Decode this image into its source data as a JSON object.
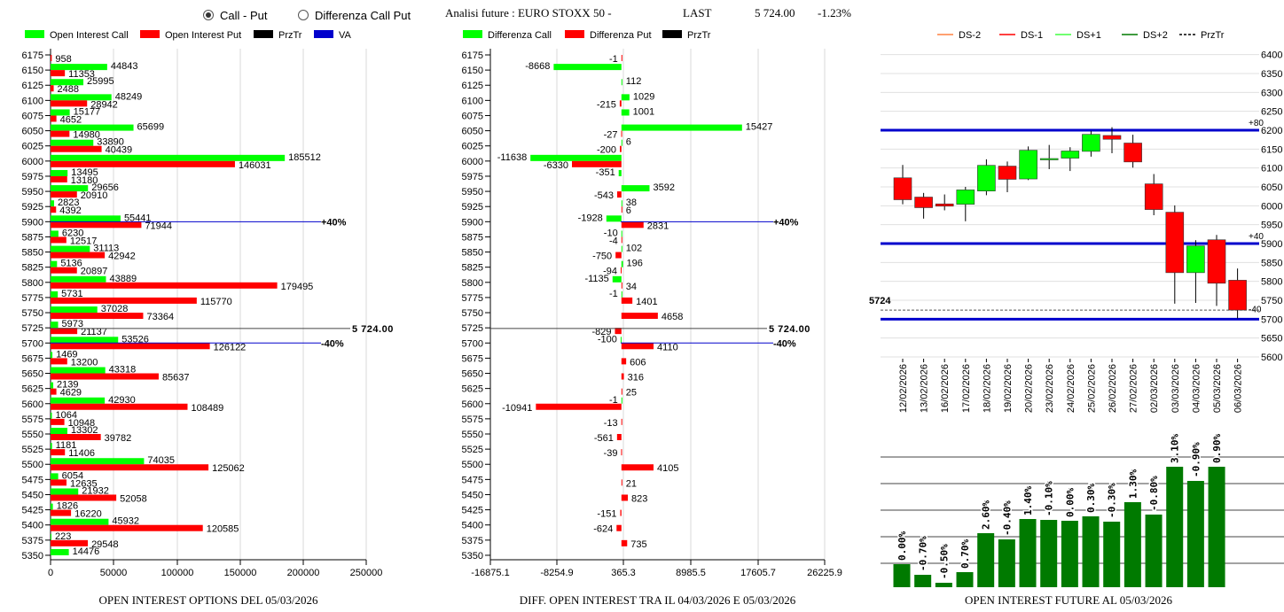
{
  "header": {
    "radio_call_put": "Call - Put",
    "radio_diff": "Differenza Call Put",
    "selected": "Call - Put",
    "title": "Analisi future : EURO STOXX 50 -",
    "last_label": "LAST",
    "last_value": "5 724.00",
    "change": "-1.23%"
  },
  "colors": {
    "call": "#00ff00",
    "put": "#ff0000",
    "prztr": "#000000",
    "va": "#0000cc",
    "future_bar": "#007a00",
    "ds_minus2": "#ff8040",
    "ds_minus1": "#ff0000",
    "ds_plus1": "#40ff40",
    "ds_plus2": "#007a00"
  },
  "chart_data": [
    {
      "type": "bar",
      "orientation": "horizontal",
      "title": "OPEN INTEREST OPTIONS DEL 05/03/2026",
      "legend": [
        "Open Interest Call",
        "Open Interest Put",
        "PrzTr",
        "VA"
      ],
      "legend_placement": "top",
      "xlim": [
        0,
        250000
      ],
      "xticks": [
        "0",
        "50000",
        "100000",
        "150000",
        "200000",
        "250000"
      ],
      "categories": [
        6175,
        6150,
        6125,
        6100,
        6075,
        6050,
        6025,
        6000,
        5975,
        5950,
        5925,
        5900,
        5875,
        5850,
        5825,
        5800,
        5775,
        5750,
        5725,
        5700,
        5675,
        5650,
        5625,
        5600,
        5575,
        5550,
        5525,
        5500,
        5475,
        5450,
        5425,
        5400,
        5375,
        5350
      ],
      "series": [
        {
          "name": "Open Interest Call",
          "values": [
            null,
            44843,
            25995,
            48249,
            15177,
            65699,
            33890,
            185512,
            13495,
            29656,
            2823,
            55441,
            6230,
            31113,
            5136,
            43889,
            5731,
            37028,
            5973,
            53526,
            1469,
            43318,
            2139,
            42930,
            1064,
            13302,
            1181,
            74035,
            6054,
            21932,
            1826,
            45932,
            223,
            14476
          ]
        },
        {
          "name": "Open Interest Put",
          "values": [
            958,
            11353,
            2488,
            28942,
            4652,
            14980,
            40439,
            146031,
            13180,
            20910,
            4392,
            71944,
            12517,
            42942,
            20897,
            179495,
            115770,
            73364,
            21137,
            126122,
            13200,
            85637,
            4629,
            108489,
            10948,
            39782,
            11406,
            125062,
            12635,
            52058,
            16220,
            120585,
            29548,
            null
          ]
        }
      ],
      "prztr": {
        "value": 5724,
        "label": "5 724.00"
      },
      "va_lines": [
        {
          "value": 5900,
          "label": "+40%"
        },
        {
          "value": 5700,
          "label": "-40%"
        }
      ]
    },
    {
      "type": "bar",
      "orientation": "horizontal",
      "title": "DIFF. OPEN INTEREST TRA IL 04/03/2026 E 05/03/2026",
      "legend": [
        "Differenza Call",
        "Differenza Put",
        "PrzTr"
      ],
      "legend_placement": "top",
      "xlim": [
        -16875.1,
        26225.9
      ],
      "xticks": [
        "-16875.1",
        "-8254.9",
        "365.3",
        "8985.5",
        "17605.7",
        "26225.9"
      ],
      "categories": [
        6175,
        6150,
        6125,
        6100,
        6075,
        6050,
        6025,
        6000,
        5975,
        5950,
        5925,
        5900,
        5875,
        5850,
        5825,
        5800,
        5775,
        5750,
        5725,
        5700,
        5675,
        5650,
        5625,
        5600,
        5575,
        5550,
        5525,
        5500,
        5475,
        5450,
        5425,
        5400,
        5375,
        5350
      ],
      "series": [
        {
          "name": "Differenza Call",
          "values": [
            null,
            -8668,
            112,
            1029,
            1001,
            15427,
            6,
            -11638,
            -351,
            3592,
            38,
            -1928,
            -10,
            102,
            196,
            -1135,
            -1,
            null,
            null,
            -100,
            null,
            null,
            null,
            -1,
            null,
            null,
            null,
            null,
            null,
            null,
            null,
            null,
            null,
            null
          ]
        },
        {
          "name": "Differenza Put",
          "values": [
            -1,
            null,
            null,
            -215,
            null,
            -27,
            -200,
            -6330,
            null,
            -543,
            6,
            2831,
            -4,
            -750,
            -94,
            34,
            1401,
            4658,
            -829,
            4110,
            606,
            316,
            25,
            -10941,
            -13,
            -561,
            -39,
            4105,
            21,
            823,
            -151,
            -624,
            735,
            null
          ]
        }
      ],
      "prztr": {
        "value": 5724,
        "label": "5 724.00"
      },
      "va_lines": [
        {
          "value": 5900,
          "label": "+40%"
        },
        {
          "value": 5700,
          "label": "-40%"
        }
      ]
    },
    {
      "type": "candlestick",
      "legend": [
        "DS-2",
        "DS-1",
        "DS+1",
        "DS+2",
        "PrzTr"
      ],
      "legend_placement": "top",
      "ylim": [
        5600,
        6400
      ],
      "yticks": [
        "6400",
        "6350",
        "6300",
        "6250",
        "6200",
        "6150",
        "6100",
        "6050",
        "6000",
        "5950",
        "5900",
        "5850",
        "5800",
        "5750",
        "5700",
        "5650",
        "5600"
      ],
      "dates": [
        "12/02/2026",
        "13/02/2026",
        "16/02/2026",
        "17/02/2026",
        "18/02/2026",
        "19/02/2026",
        "20/02/2026",
        "23/02/2026",
        "24/02/2026",
        "25/02/2026",
        "26/02/2026",
        "27/02/2026",
        "02/03/2026",
        "03/03/2026",
        "04/03/2026",
        "05/03/2026",
        "06/03/2026"
      ],
      "ohlc": [
        [
          6074,
          6108,
          6004,
          6016
        ],
        [
          6023,
          6034,
          5966,
          5995
        ],
        [
          6005,
          6030,
          5988,
          5999
        ],
        [
          6004,
          6050,
          5959,
          6042
        ],
        [
          6039,
          6123,
          6028,
          6107
        ],
        [
          6105,
          6117,
          6036,
          6070
        ],
        [
          6071,
          6157,
          6068,
          6147
        ],
        [
          6125,
          6161,
          6097,
          6125
        ],
        [
          6126,
          6155,
          6092,
          6145
        ],
        [
          6144,
          6198,
          6130,
          6189
        ],
        [
          6186,
          6208,
          6139,
          6176
        ],
        [
          6166,
          6188,
          6101,
          6116
        ],
        [
          6058,
          6084,
          5975,
          5990
        ],
        [
          5983,
          6001,
          5741,
          5823
        ],
        [
          5823,
          5909,
          5743,
          5894
        ],
        [
          5910,
          5923,
          5735,
          5795
        ],
        [
          5803,
          5834,
          5702,
          5724
        ]
      ],
      "level_lines": [
        {
          "value": 6200,
          "label": "+80"
        },
        {
          "value": 5900,
          "label": "+40"
        },
        {
          "value": 5700,
          "label": "-40"
        }
      ],
      "prztr": {
        "value": 5724,
        "label": "5724"
      }
    },
    {
      "type": "bar",
      "title": "OPEN INTEREST FUTURE AL 05/03/2026",
      "values_relative": [
        26,
        14,
        5,
        17,
        61,
        54,
        77,
        76,
        75,
        80,
        74,
        96,
        82,
        136,
        120,
        136
      ],
      "labels": [
        "0.00%",
        "-0.70%",
        "-0.50%",
        "0.70%",
        "2.60%",
        "-0.40%",
        "1.40%",
        "-0.10%",
        "0.00%",
        "0.30%",
        "-0.30%",
        "1.30%",
        "-0.80%",
        "3.10%",
        "-0.90%",
        "0.90%"
      ],
      "grid": true
    }
  ]
}
